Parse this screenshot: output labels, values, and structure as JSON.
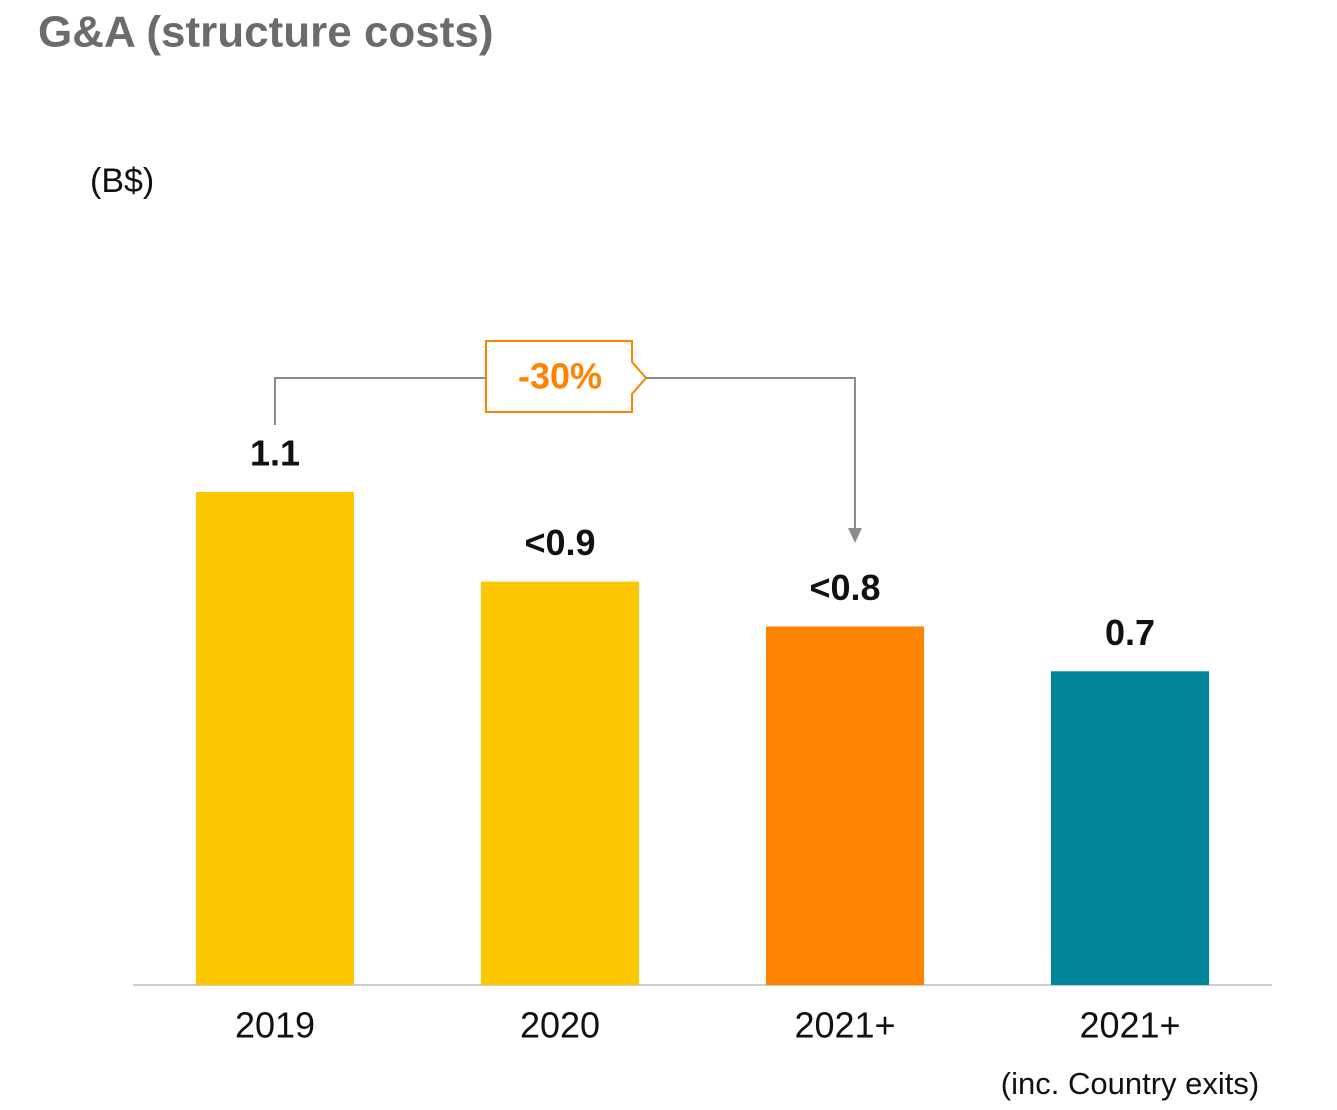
{
  "chart_data": {
    "type": "bar",
    "title": "G&A (structure costs)",
    "y_label": "(B$)",
    "categories": [
      "2019",
      "2020",
      "2021+",
      "2021+"
    ],
    "values": [
      1.1,
      0.9,
      0.8,
      0.7
    ],
    "value_labels": [
      "1.1",
      "<0.9",
      "<0.8",
      "0.7"
    ],
    "colors": [
      "#fdc700",
      "#fdc700",
      "#fe8300",
      "#02869a"
    ],
    "ylim": [
      0,
      1.1
    ],
    "annotations": {
      "change": "-30%",
      "note": "(inc. Country exits)"
    }
  }
}
